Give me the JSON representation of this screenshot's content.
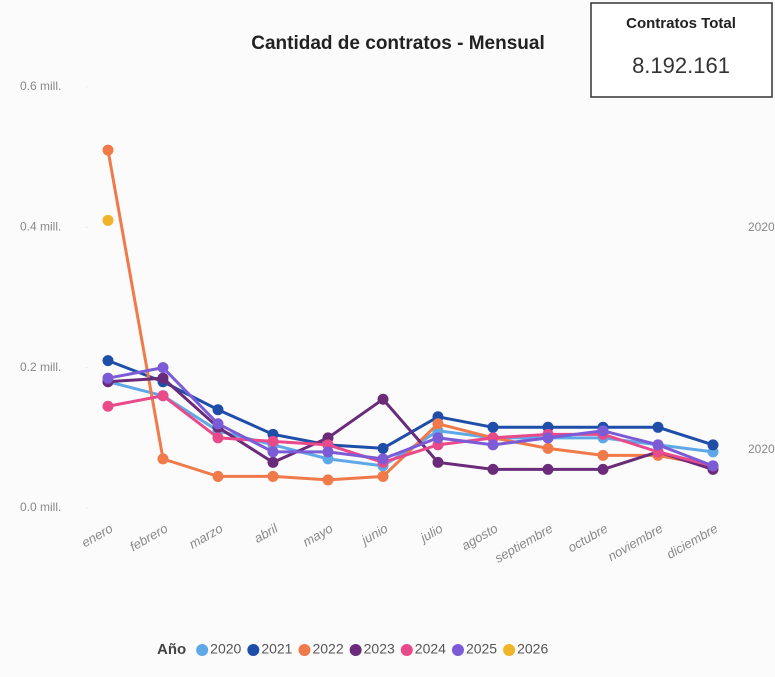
{
  "chart_data": {
    "type": "line",
    "title": "Cantidad de contratos - Mensual",
    "card": {
      "label": "Contratos Total",
      "value": "8.192.161"
    },
    "categories": [
      "enero",
      "febrero",
      "marzo",
      "abril",
      "mayo",
      "junio",
      "julio",
      "agosto",
      "septiembre",
      "octubre",
      "noviembre",
      "diciembre"
    ],
    "ylim": [
      0,
      0.6
    ],
    "yticks": [
      {
        "value": 0,
        "label": "0.0 mill."
      },
      {
        "value": 0.2,
        "label": "0.2 mill."
      },
      {
        "value": 0.4,
        "label": "0.4 mill."
      },
      {
        "value": 0.6,
        "label": "0.6 mill."
      }
    ],
    "legend_title": "Año",
    "legend": "bottom",
    "annotations": [
      "2020",
      "2020"
    ],
    "series": [
      {
        "name": "2020",
        "color": "#5fa8e8",
        "values": [
          0.18,
          0.16,
          0.11,
          0.09,
          0.07,
          0.06,
          0.11,
          0.1,
          0.1,
          0.1,
          0.09,
          0.08
        ]
      },
      {
        "name": "2021",
        "color": "#1f4ea8",
        "values": [
          0.21,
          0.18,
          0.14,
          0.105,
          0.09,
          0.085,
          0.13,
          0.115,
          0.115,
          0.115,
          0.115,
          0.09
        ]
      },
      {
        "name": "2022",
        "color": "#f07a4a",
        "values": [
          0.51,
          0.07,
          0.045,
          0.045,
          0.04,
          0.045,
          0.12,
          0.1,
          0.085,
          0.075,
          0.075,
          0.06
        ]
      },
      {
        "name": "2023",
        "color": "#6a2c7a",
        "values": [
          0.18,
          0.185,
          0.115,
          0.065,
          0.1,
          0.155,
          0.065,
          0.055,
          0.055,
          0.055,
          0.08,
          0.055
        ]
      },
      {
        "name": "2024",
        "color": "#e84a8a",
        "values": [
          0.145,
          0.16,
          0.1,
          0.095,
          0.09,
          0.065,
          0.09,
          0.1,
          0.105,
          0.105,
          0.08,
          0.06
        ]
      },
      {
        "name": "2025",
        "color": "#7b5cd6",
        "values": [
          0.185,
          0.2,
          0.12,
          0.08,
          0.08,
          0.07,
          0.1,
          0.09,
          0.1,
          0.11,
          0.09,
          0.06
        ]
      },
      {
        "name": "2026",
        "color": "#f0b429",
        "values": [
          0.41,
          null,
          null,
          null,
          null,
          null,
          null,
          null,
          null,
          null,
          null,
          null
        ]
      }
    ]
  }
}
